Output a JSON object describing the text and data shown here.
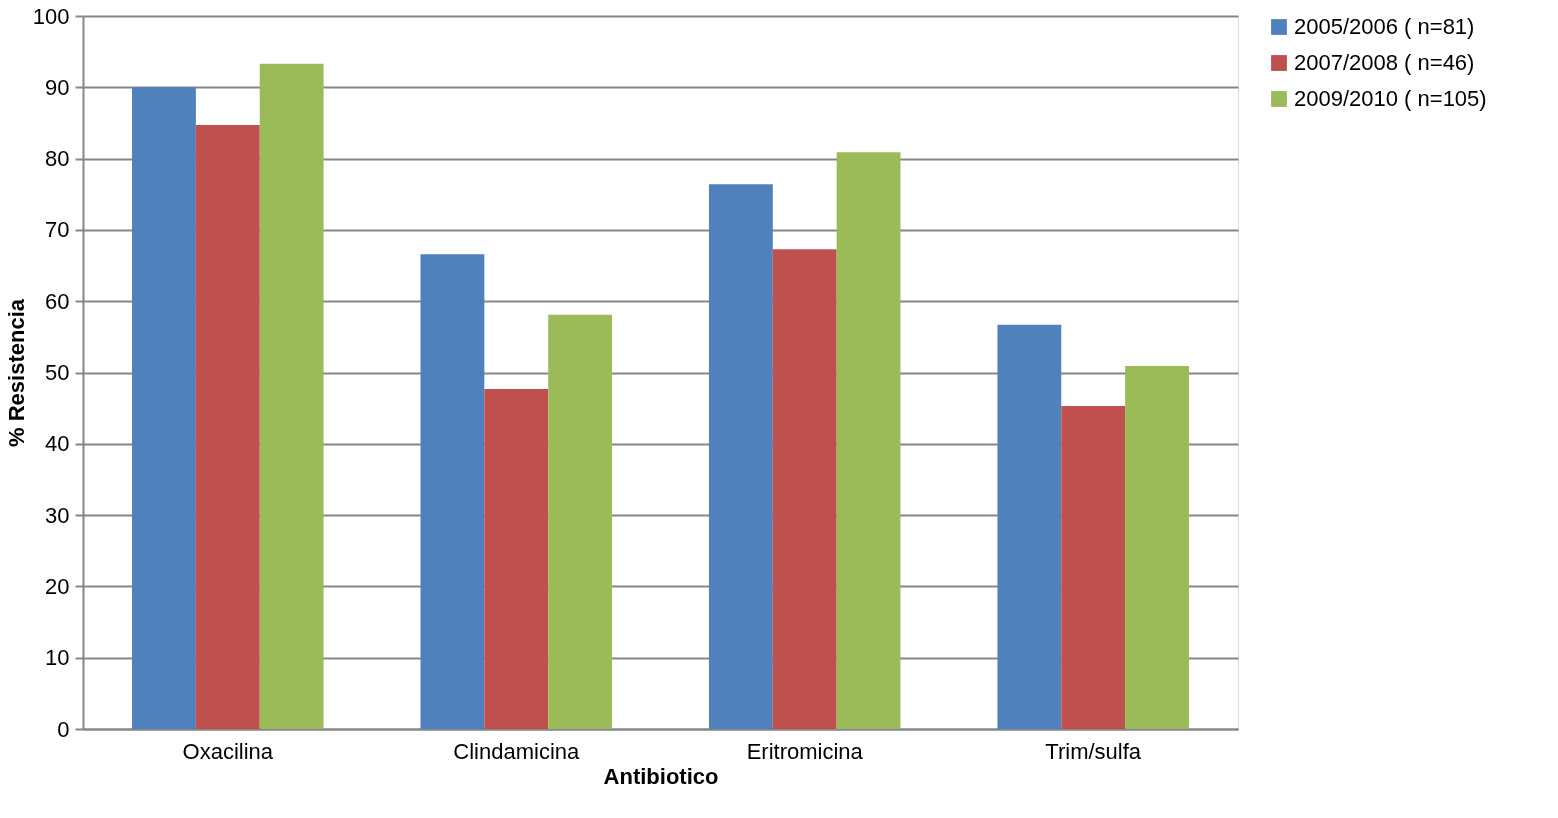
{
  "chart_data": {
    "type": "bar",
    "xlabel": "Antibiotico",
    "ylabel": "% Resistencia",
    "categories": [
      "Oxacilina",
      "Clindamicina",
      "Eritromicina",
      "Trim/sulfa"
    ],
    "series": [
      {
        "name": "2005/2006 ( n=81)",
        "color": "#4f81bd",
        "values": [
          90.0,
          66.6,
          76.4,
          56.7
        ]
      },
      {
        "name": "2007/2008 ( n=46)",
        "color": "#c0504d",
        "values": [
          84.7,
          47.7,
          67.3,
          45.3
        ]
      },
      {
        "name": "2009/2010 ( n=105)",
        "color": "#9bbb59",
        "values": [
          93.3,
          58.1,
          80.9,
          50.9
        ]
      }
    ],
    "ylim": [
      0,
      100
    ],
    "yticks": [
      0,
      10,
      20,
      30,
      40,
      50,
      60,
      70,
      80,
      90,
      100
    ],
    "grid": "y",
    "legend": "right"
  }
}
